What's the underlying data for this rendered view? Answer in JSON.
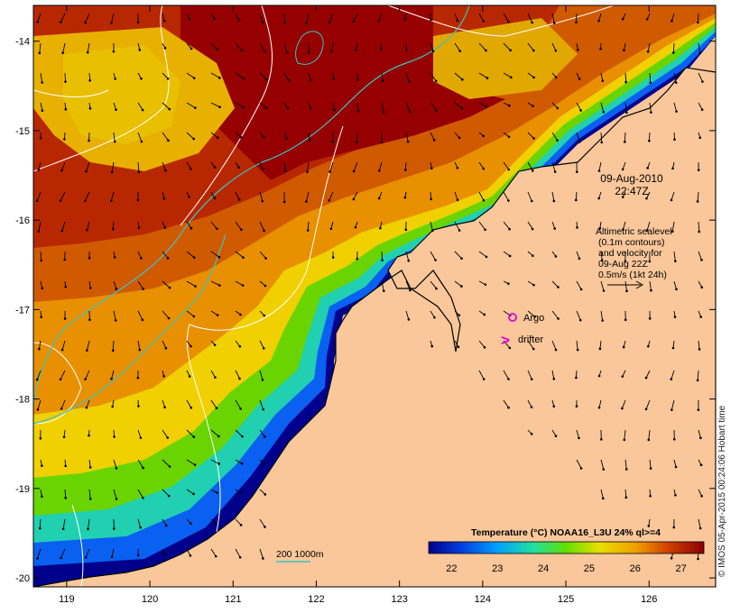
{
  "map": {
    "lon_ticks": [
      "119",
      "120",
      "121",
      "122",
      "123",
      "124",
      "125",
      "126"
    ],
    "lat_ticks": [
      "-14",
      "-15",
      "-16",
      "-17",
      "-18",
      "-19",
      "-20"
    ],
    "lon_range": [
      118.6,
      126.8
    ],
    "lat_range": [
      -13.6,
      -20.1
    ]
  },
  "annotations": {
    "date": "09-Aug-2010",
    "time": "22:47Z",
    "altimetry_lines": [
      "Altimetric sealevel",
      "(0.1m contours)",
      "and velocity for",
      "09-Aug 22Z",
      "0.5m/s (1kt 24h)"
    ],
    "argo_label": "Argo",
    "drifter_label": "drifter",
    "drifter_symbol": ">",
    "isobath_label": "200  1000m"
  },
  "colorbar": {
    "title": "Temperature (°C) NOAA16_L3U 24% ql>=4",
    "ticks": [
      "22",
      "23",
      "24",
      "25",
      "26",
      "27"
    ],
    "min": 21.5,
    "max": 27.5
  },
  "credit": "© IMOS 05-Apr-2015 00:24:06 Hobart time",
  "colors": {
    "land": "#f9c79a",
    "argo": "#e000e0",
    "drifter": "#e000e0",
    "isobath": "#3cc2c2",
    "sealevel_contour": "#ffffff"
  }
}
